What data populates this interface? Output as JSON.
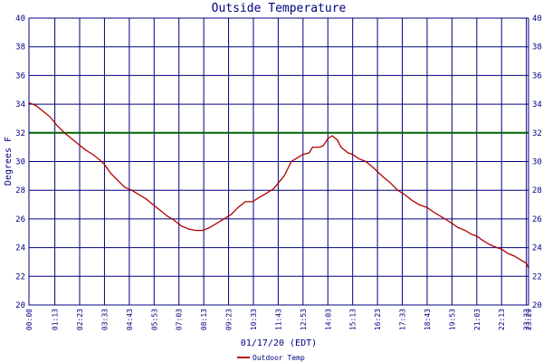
{
  "chart_data": {
    "type": "line",
    "title": "Outside Temperature",
    "xlabel": "01/17/20 (EDT)",
    "ylabel": "Degrees F",
    "ylim": [
      20,
      40
    ],
    "yticks": [
      20,
      22,
      24,
      26,
      28,
      30,
      32,
      34,
      36,
      38,
      40
    ],
    "x_tick_labels": [
      "00:00",
      "01:13",
      "02:23",
      "03:33",
      "04:43",
      "05:53",
      "07:03",
      "08:13",
      "09:23",
      "10:33",
      "11:43",
      "12:53",
      "14:03",
      "15:13",
      "16:23",
      "17:33",
      "18:43",
      "19:53",
      "21:03",
      "22:13",
      "23:23",
      "23:29"
    ],
    "x_tick_minutes": [
      0,
      73,
      143,
      213,
      283,
      353,
      423,
      493,
      563,
      633,
      703,
      773,
      843,
      913,
      983,
      1053,
      1123,
      1193,
      1263,
      1333,
      1403,
      1409
    ],
    "x_range_minutes": [
      0,
      1409
    ],
    "grid": true,
    "legend_position": "bottom",
    "reference_line": {
      "value": 32,
      "color": "#006400"
    },
    "colors": {
      "grid": "#000080",
      "series": "#b00000",
      "frame": "#000080"
    },
    "series": [
      {
        "name": "Outdoor Temp",
        "color": "#b00000",
        "x": [
          0,
          20,
          40,
          60,
          80,
          100,
          120,
          140,
          160,
          180,
          200,
          213,
          230,
          250,
          270,
          290,
          310,
          330,
          350,
          370,
          390,
          410,
          430,
          450,
          470,
          490,
          510,
          530,
          550,
          570,
          590,
          610,
          630,
          650,
          670,
          690,
          703,
          720,
          740,
          760,
          773,
          790,
          800,
          810,
          820,
          830,
          843,
          855,
          870,
          880,
          900,
          913,
          930,
          950,
          970,
          983,
          1000,
          1020,
          1040,
          1060,
          1080,
          1100,
          1123,
          1140,
          1160,
          1180,
          1193,
          1210,
          1230,
          1250,
          1263,
          1280,
          1300,
          1320,
          1333,
          1350,
          1370,
          1390,
          1403,
          1409
        ],
        "y": [
          34.1,
          33.9,
          33.5,
          33.1,
          32.5,
          32.0,
          31.6,
          31.2,
          30.8,
          30.5,
          30.1,
          29.8,
          29.2,
          28.7,
          28.2,
          28.0,
          27.7,
          27.4,
          27.0,
          26.6,
          26.2,
          25.9,
          25.5,
          25.3,
          25.2,
          25.2,
          25.4,
          25.7,
          26.0,
          26.3,
          26.8,
          27.2,
          27.2,
          27.5,
          27.8,
          28.1,
          28.5,
          29.0,
          30.0,
          30.3,
          30.5,
          30.6,
          31.0,
          31.0,
          31.0,
          31.1,
          31.6,
          31.8,
          31.5,
          31.0,
          30.6,
          30.5,
          30.2,
          30.0,
          29.6,
          29.3,
          28.9,
          28.5,
          28.0,
          27.7,
          27.3,
          27.0,
          26.8,
          26.5,
          26.2,
          25.9,
          25.7,
          25.4,
          25.2,
          24.9,
          24.8,
          24.5,
          24.2,
          24.0,
          23.9,
          23.6,
          23.4,
          23.1,
          22.9,
          22.6
        ]
      }
    ]
  }
}
